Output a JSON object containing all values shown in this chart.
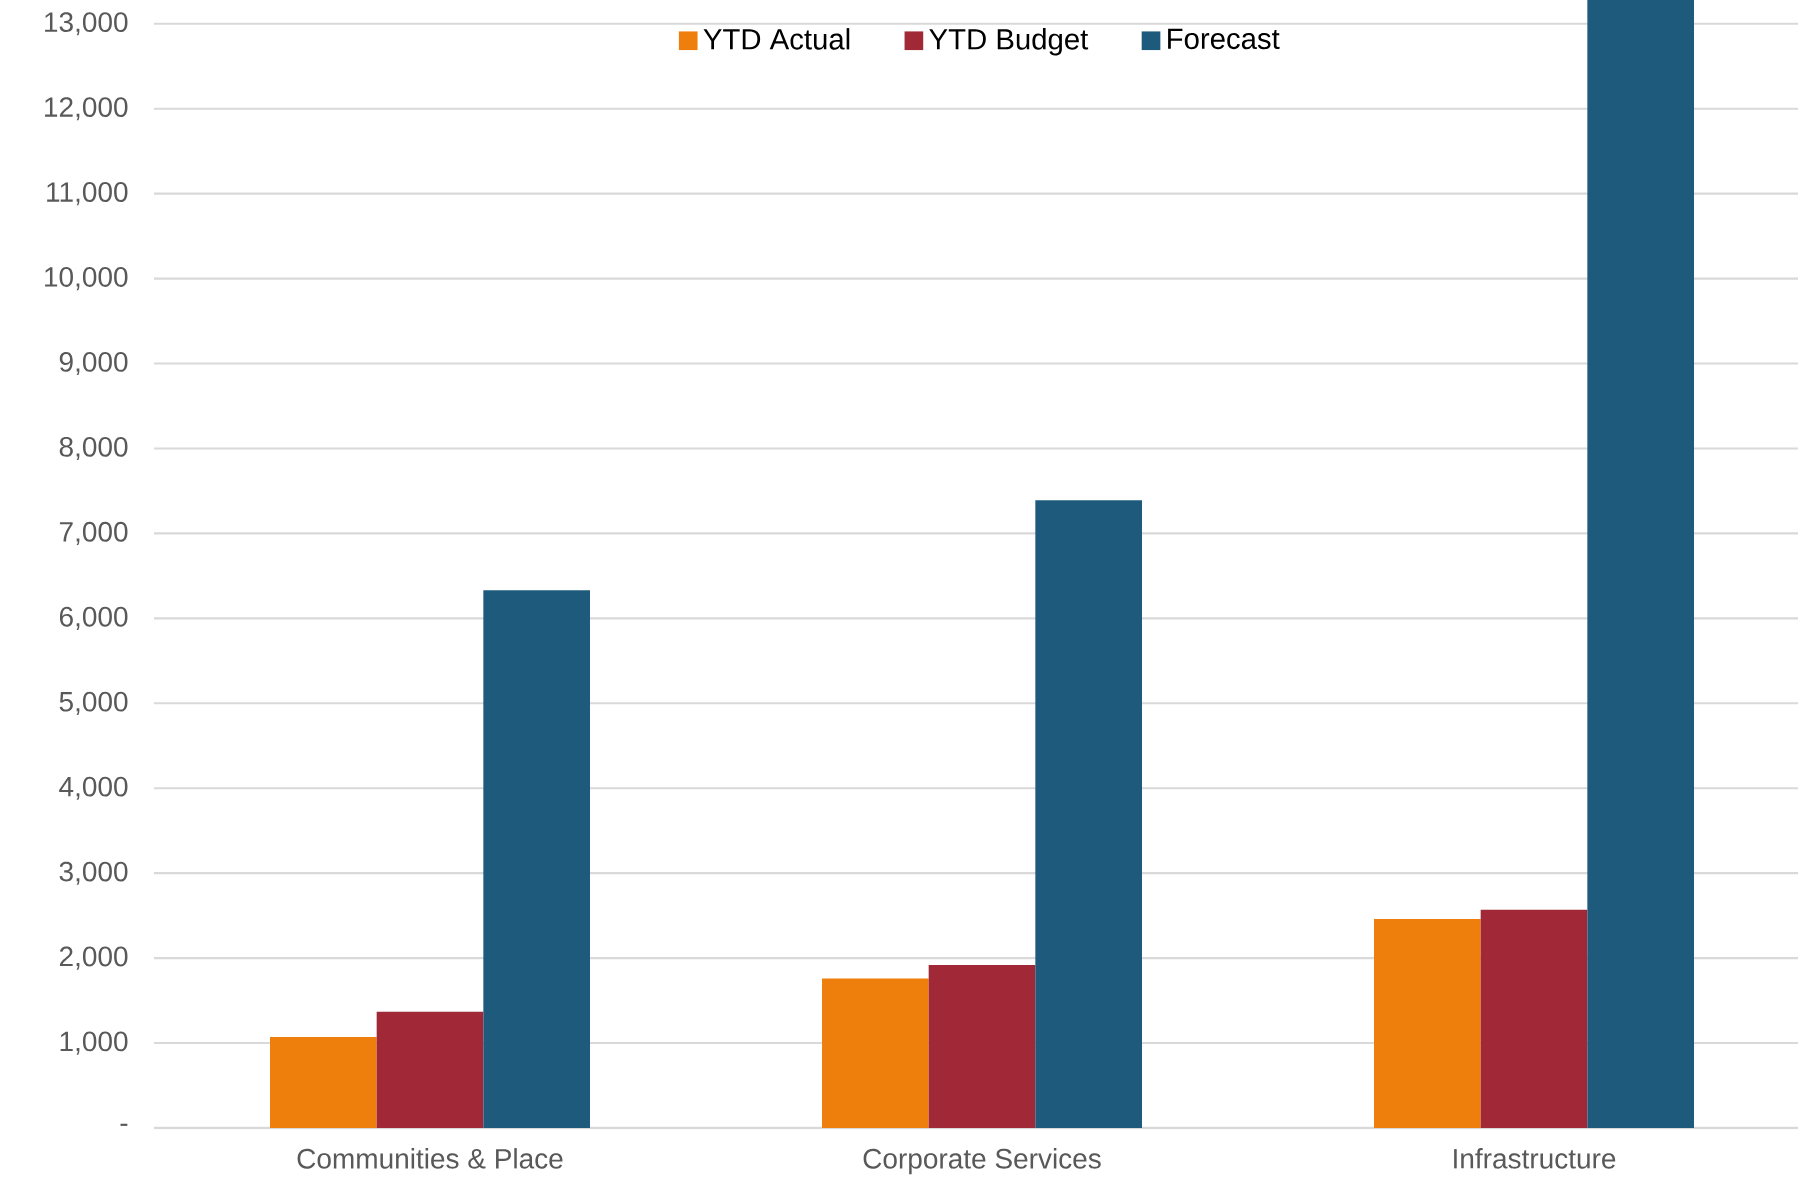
{
  "chart_data": {
    "type": "bar",
    "categories": [
      "Communities & Place",
      "Corporate Services",
      "Infrastructure"
    ],
    "series": [
      {
        "name": "YTD Actual",
        "color": "#ef7f0c",
        "values": [
          1070,
          1760,
          2460
        ]
      },
      {
        "name": "YTD Budget",
        "color": "#a02837",
        "values": [
          1370,
          1920,
          2570
        ]
      },
      {
        "name": "Forecast",
        "color": "#1e5a7c",
        "values": [
          6330,
          7390,
          13280
        ]
      }
    ],
    "ylim": [
      0,
      13280
    ],
    "yticks": [
      {
        "value": 0,
        "label": "-"
      },
      {
        "value": 1000,
        "label": "1,000"
      },
      {
        "value": 2000,
        "label": "2,000"
      },
      {
        "value": 3000,
        "label": "3,000"
      },
      {
        "value": 4000,
        "label": "4,000"
      },
      {
        "value": 5000,
        "label": "5,000"
      },
      {
        "value": 6000,
        "label": "6,000"
      },
      {
        "value": 7000,
        "label": "7,000"
      },
      {
        "value": 8000,
        "label": "8,000"
      },
      {
        "value": 9000,
        "label": "9,000"
      },
      {
        "value": 10000,
        "label": "10,000"
      },
      {
        "value": 11000,
        "label": "11,000"
      },
      {
        "value": 12000,
        "label": "12,000"
      },
      {
        "value": 13000,
        "label": "13,000"
      }
    ],
    "grid": "y",
    "legend": "top"
  }
}
